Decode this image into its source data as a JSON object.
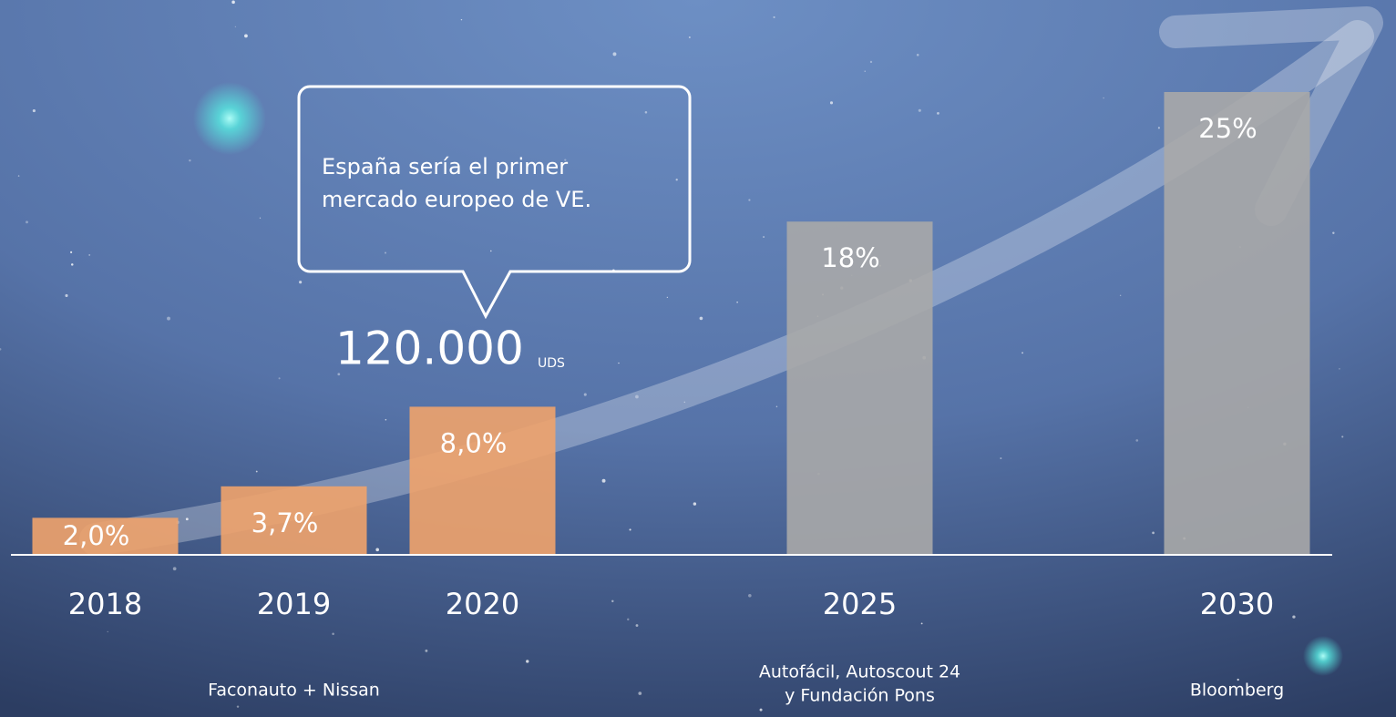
{
  "chart_data": {
    "type": "bar",
    "categories": [
      "2018",
      "2019",
      "2020",
      null,
      "2025",
      null,
      "2030"
    ],
    "values": [
      2.0,
      3.7,
      8.0,
      null,
      18,
      null,
      25
    ],
    "value_labels": [
      "2,0%",
      "3,7%",
      "8,0%",
      null,
      "18%",
      null,
      "25%"
    ],
    "colors": [
      "#f0a36b",
      "#f0a36b",
      "#f0a36b",
      null,
      "#a9a9a9",
      null,
      "#a9a9a9"
    ],
    "annotation": {
      "lines": [
        "España sería el primer",
        "mercado europeo de VE."
      ],
      "figure": "120.000",
      "unit": "UDS"
    },
    "sources": [
      {
        "category": 1,
        "lines": [
          "Faconauto + Nissan"
        ]
      },
      {
        "category": 4,
        "lines": [
          "Autofácil, Autoscout 24",
          "y Fundación Pons"
        ]
      },
      {
        "category": 6,
        "lines": [
          "Bloomberg"
        ]
      }
    ]
  }
}
